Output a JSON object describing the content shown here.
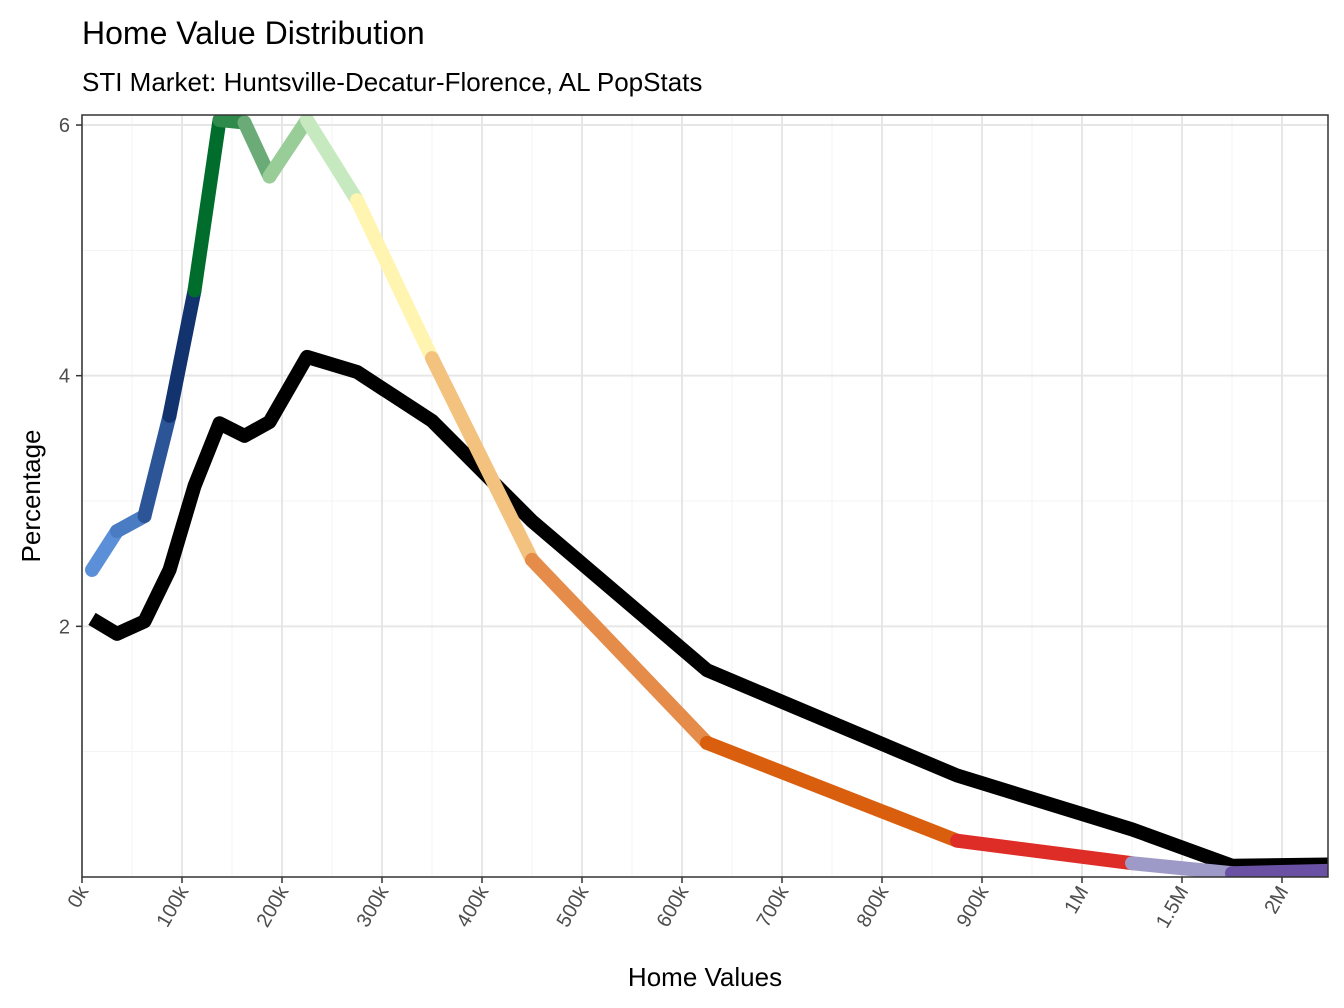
{
  "chart_data": {
    "type": "line",
    "title": "Home Value Distribution",
    "subtitle": "STI Market: Huntsville-Decatur-Florence, AL PopStats",
    "x_label": "Home Values",
    "y_label": "Percentage",
    "x": [
      10000,
      35000,
      62500,
      87500,
      112500,
      137500,
      162500,
      187500,
      225000,
      275000,
      350000,
      450000,
      625000,
      875000,
      1250000,
      1750000,
      2250000
    ],
    "series": [
      {
        "color": "#000000",
        "values": [
          2.06,
          1.94,
          2.04,
          2.45,
          3.12,
          3.62,
          3.52,
          3.63,
          4.15,
          4.03,
          3.64,
          2.84,
          1.65,
          0.81,
          0.38,
          0.09,
          0.1
        ]
      },
      {
        "segment_colors": [
          "#5b8fd8",
          "#4a7cc4",
          "#2c5597",
          "#13336e",
          "#006d2c",
          "#2f8b4c",
          "#6aab78",
          "#98cd98",
          "#c7e9c0",
          "#fff5b0",
          "#f3c27e",
          "#e58c4a",
          "#d95f0e",
          "#de2d26",
          "#9e9ac8",
          "#6a51a3"
        ],
        "values": [
          2.45,
          2.76,
          2.88,
          3.68,
          4.68,
          6.04,
          6.02,
          5.59,
          6.04,
          5.4,
          4.14,
          2.53,
          1.07,
          0.29,
          0.11,
          0.03,
          0.05
        ]
      }
    ],
    "xlim": [
      0,
      2250000
    ],
    "xticks": [
      {
        "value": 0,
        "label": "0k"
      },
      {
        "value": 100000,
        "label": "100k"
      },
      {
        "value": 200000,
        "label": "200k"
      },
      {
        "value": 300000,
        "label": "300k"
      },
      {
        "value": 400000,
        "label": "400k"
      },
      {
        "value": 500000,
        "label": "500k"
      },
      {
        "value": 600000,
        "label": "600k"
      },
      {
        "value": 700000,
        "label": "700k"
      },
      {
        "value": 800000,
        "label": "800k"
      },
      {
        "value": 900000,
        "label": "900k"
      },
      {
        "value": 1000000,
        "label": "1M"
      },
      {
        "value": 1500000,
        "label": "1.5M"
      },
      {
        "value": 2000000,
        "label": "2M"
      }
    ],
    "ylim": [
      0,
      6.08
    ],
    "yticks": [
      2,
      4,
      6
    ],
    "grid": true
  }
}
